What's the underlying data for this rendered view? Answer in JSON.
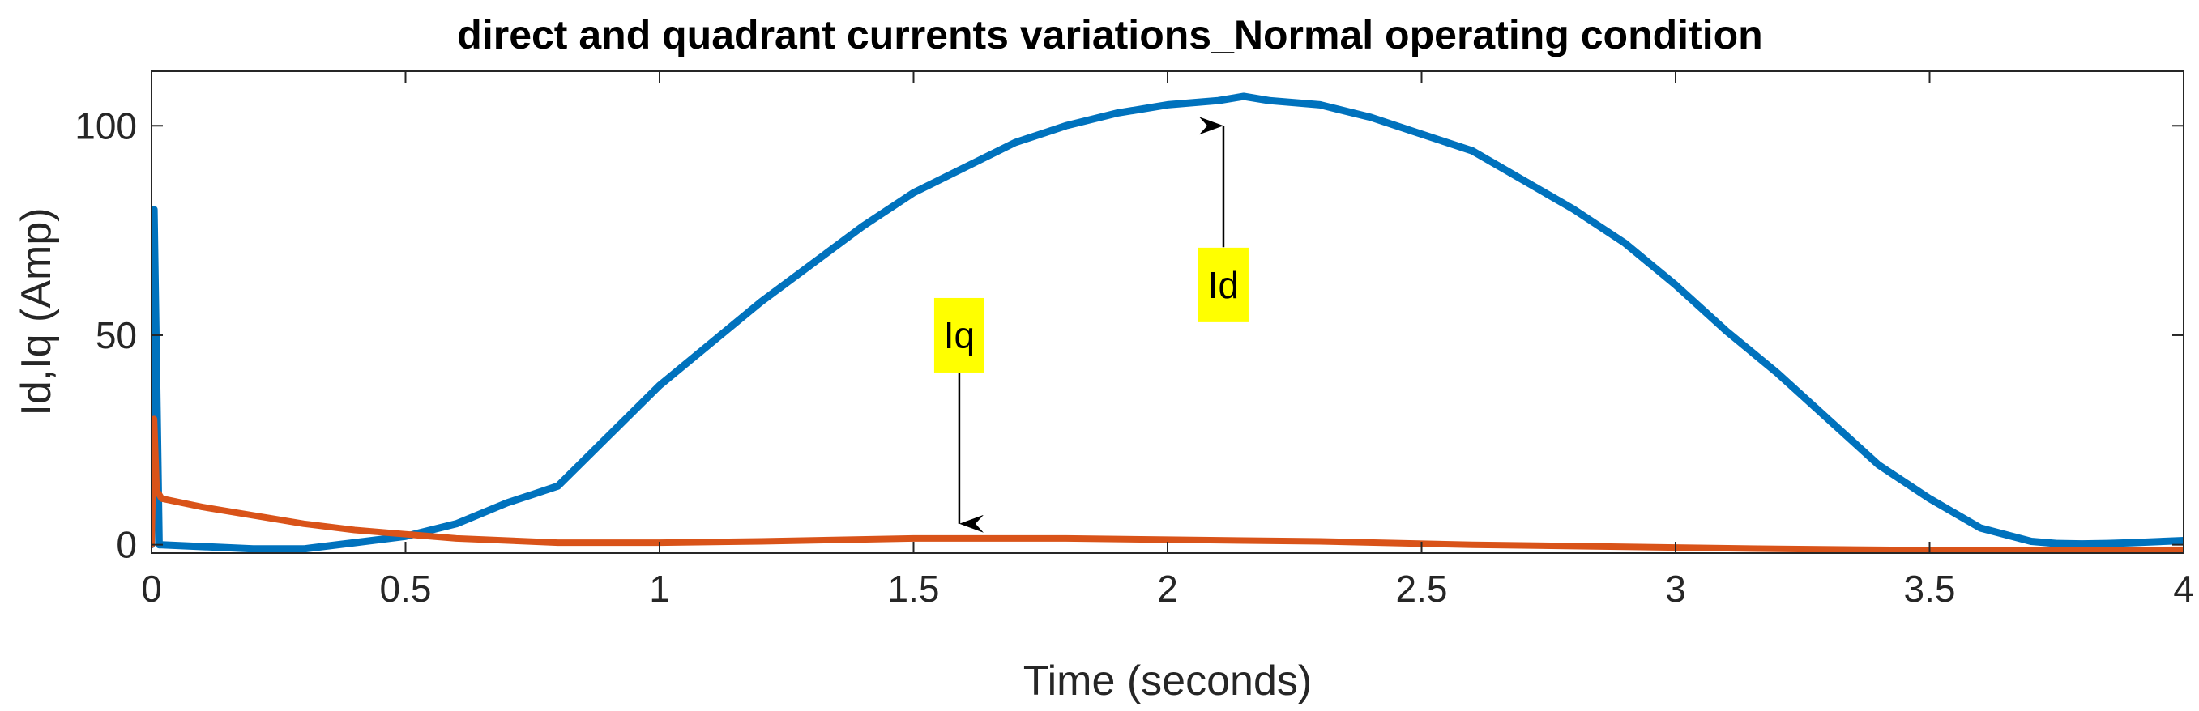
{
  "chart_data": {
    "type": "line",
    "title": "direct and quadrant currents variations_Normal operating condition",
    "xlabel": "Time (seconds)",
    "ylabel": "Id,Iq (Amp)",
    "xlim": [
      0,
      4
    ],
    "ylim": [
      -2,
      113
    ],
    "xticks": [
      {
        "value": 0,
        "label": "0"
      },
      {
        "value": 0.5,
        "label": "0.5"
      },
      {
        "value": 1,
        "label": "1"
      },
      {
        "value": 1.5,
        "label": "1.5"
      },
      {
        "value": 2,
        "label": "2"
      },
      {
        "value": 2.5,
        "label": "2.5"
      },
      {
        "value": 3,
        "label": "3"
      },
      {
        "value": 3.5,
        "label": "3.5"
      },
      {
        "value": 4,
        "label": "4"
      }
    ],
    "yticks": [
      {
        "value": 0,
        "label": "0"
      },
      {
        "value": 50,
        "label": "50"
      },
      {
        "value": 100,
        "label": "100"
      }
    ],
    "grid": false,
    "series": [
      {
        "color": "#0072BD",
        "x": [
          0,
          0.005,
          0.01,
          0.015,
          0.02,
          0.2,
          0.3,
          0.4,
          0.5,
          0.6,
          0.7,
          0.75,
          0.8,
          0.85,
          0.9,
          1.0,
          1.1,
          1.2,
          1.3,
          1.4,
          1.5,
          1.6,
          1.7,
          1.8,
          1.9,
          2.0,
          2.1,
          2.15,
          2.2,
          2.3,
          2.4,
          2.5,
          2.6,
          2.7,
          2.8,
          2.9,
          3.0,
          3.1,
          3.2,
          3.3,
          3.4,
          3.5,
          3.6,
          3.7,
          3.75,
          3.8,
          3.85,
          3.9,
          4.0
        ],
        "y": [
          0,
          80,
          40,
          0,
          0,
          -1,
          -1,
          0.5,
          2,
          5,
          10,
          12,
          14,
          20,
          26,
          38,
          48,
          58,
          67,
          76,
          84,
          90,
          96,
          100,
          103,
          105,
          106,
          107,
          106,
          105,
          102,
          98,
          94,
          87,
          80,
          72,
          62,
          51,
          41,
          30,
          19,
          11,
          4,
          0.8,
          0.3,
          0.2,
          0.3,
          0.5,
          1
        ]
      },
      {
        "color": "#D95319",
        "x": [
          0,
          0.005,
          0.01,
          0.02,
          0.1,
          0.2,
          0.3,
          0.4,
          0.5,
          0.6,
          0.8,
          1.0,
          1.2,
          1.5,
          1.8,
          2.0,
          2.3,
          2.6,
          2.9,
          3.2,
          3.5,
          3.8,
          4.0
        ],
        "y": [
          0,
          30,
          13,
          11,
          9,
          7,
          5,
          3.5,
          2.5,
          1.5,
          0.5,
          0.5,
          0.8,
          1.5,
          1.5,
          1.2,
          0.8,
          0,
          -0.5,
          -1,
          -1.3,
          -1.3,
          -1.2
        ]
      }
    ],
    "annotations": [
      {
        "text": "Id",
        "x": 2.11,
        "y": 62,
        "arrow_to": [
          2.11,
          100
        ],
        "arrow_from_y": 71,
        "background": "#FFFF00"
      },
      {
        "text": "Iq",
        "x": 1.59,
        "y": 50,
        "arrow_to": [
          1.59,
          5
        ],
        "arrow_from_y": 41,
        "background": "#FFFF00"
      }
    ]
  }
}
